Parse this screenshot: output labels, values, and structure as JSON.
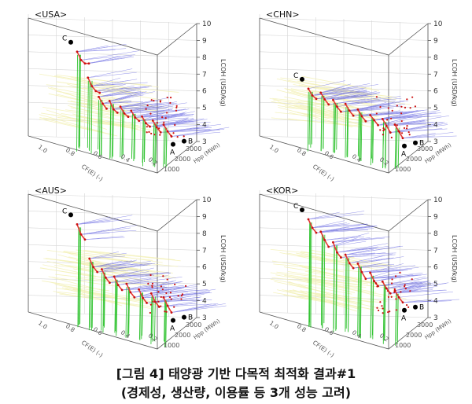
{
  "caption": {
    "line1": "[그림 4] 태양광 기반 다목적 최적화 결과#1",
    "line2": "(경제성, 생산량, 이용률 등 3개 성능 고려)"
  },
  "colors": {
    "frontier": "#e53935",
    "points": "#cc1111",
    "lines_blue": "#3b3bd8",
    "lines_green": "#35c435",
    "lines_yellow": "#f2efb0",
    "marker": "#000000",
    "axis": "#555555",
    "grid": "#d6d6d6"
  },
  "axes": {
    "z_label": "LCOH (USD/kg)",
    "z_ticks": [
      "3",
      "4",
      "5",
      "6",
      "7",
      "8",
      "9",
      "10"
    ],
    "x_label": "CF(E) (-)",
    "x_ticks": [
      "0.2",
      "0.4",
      "0.6",
      "0.8",
      "1.0"
    ],
    "y_label": "Hpp (MWh)",
    "y_ticks": [
      "1000",
      "2000",
      "3000"
    ]
  },
  "chart_data": [
    {
      "type": "scatter",
      "title": "<USA>",
      "zlim": [
        3,
        10
      ],
      "points": {
        "A": "A",
        "B": "B",
        "C": "C"
      },
      "frontier_lcoh": [
        [
          8.8,
          8.3,
          8.1,
          8.1
        ],
        [
          7.2,
          6.7,
          6.4,
          6.3
        ],
        [
          6.0,
          5.6,
          5.3
        ],
        [
          5.7,
          5.2,
          5.0
        ],
        [
          5.3,
          4.9,
          4.7
        ],
        [
          5.0,
          4.6,
          4.4
        ],
        [
          4.6,
          4.2,
          4.0
        ],
        [
          4.3,
          3.9,
          3.6
        ],
        [
          4.0,
          3.6,
          3.3
        ]
      ],
      "grid": "on"
    },
    {
      "type": "scatter",
      "title": "<CHN>",
      "zlim": [
        3,
        10
      ],
      "points": {
        "A": "A",
        "B": "B",
        "C": "C"
      },
      "frontier_lcoh": [
        [
          6.6,
          6.2,
          6.0
        ],
        [
          6.3,
          5.9,
          5.6
        ],
        [
          5.8,
          5.4,
          5.1
        ],
        [
          5.5,
          5.1,
          4.8
        ],
        [
          5.1,
          4.7,
          4.4
        ],
        [
          4.7,
          4.4,
          4.1
        ],
        [
          4.4,
          4.0,
          3.6
        ],
        [
          4.0,
          3.6,
          3.2
        ]
      ],
      "grid": "on"
    },
    {
      "type": "scatter",
      "title": "<AUS>",
      "zlim": [
        3,
        10
      ],
      "points": {
        "A": "A",
        "B": "B",
        "C": "C"
      },
      "frontier_lcoh": [
        [
          9.0,
          8.4,
          8.1
        ],
        [
          6.9,
          6.4,
          6.1
        ],
        [
          6.2,
          5.7,
          5.4
        ],
        [
          5.7,
          5.2,
          4.9
        ],
        [
          5.2,
          4.7,
          4.4
        ],
        [
          4.8,
          4.3,
          4.0
        ],
        [
          4.5,
          4.0,
          3.7
        ],
        [
          4.2,
          3.7,
          3.3
        ]
      ],
      "grid": "on"
    },
    {
      "type": "scatter",
      "title": "<KOR>",
      "zlim": [
        3,
        10
      ],
      "points": {
        "A": "A",
        "B": "B",
        "C": "C"
      },
      "frontier_lcoh": [
        [
          9.3,
          8.8,
          8.5
        ],
        [
          8.5,
          8.0,
          7.6
        ],
        [
          7.8,
          7.2,
          6.9
        ],
        [
          7.0,
          6.5,
          6.2
        ],
        [
          6.4,
          5.9,
          5.5
        ],
        [
          5.8,
          5.3,
          5.0
        ],
        [
          5.2,
          4.8,
          4.5
        ],
        [
          4.6,
          4.2,
          3.9
        ]
      ],
      "grid": "on"
    }
  ]
}
